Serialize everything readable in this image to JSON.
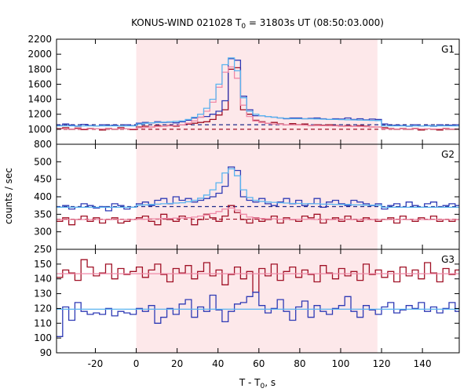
{
  "chart_data": {
    "type": "line",
    "title_main": "KONUS-WIND 021028 T",
    "title_sub": "0",
    "title_rest": " = 31803s UT (08:50:03.000)",
    "xlabel_main": "T - T",
    "xlabel_sub": "0",
    "xlabel_rest": ", s",
    "ylabel": "counts / sec",
    "xlim": [
      -39,
      158
    ],
    "xticks": [
      -20,
      0,
      20,
      40,
      60,
      80,
      100,
      120,
      140
    ],
    "shaded_interval": [
      0,
      118
    ],
    "colors": {
      "shade": "#fde8ea",
      "red_series": "#a01025",
      "blue_series": "#2e3ab5",
      "light_blue_model": "#5ab4f0",
      "pink_model": "#f08aa8",
      "navy_background": "#1f2a8a",
      "crimson_background": "#a01025",
      "grid": "#000000"
    },
    "step_x": [
      -39,
      -36,
      -33,
      -30,
      -27,
      -24,
      -21,
      -18,
      -15,
      -12,
      -9,
      -6,
      -3,
      0,
      3,
      6,
      9,
      12,
      15,
      18,
      21,
      24,
      27,
      30,
      33,
      36,
      39,
      42,
      45,
      48,
      51,
      54,
      57,
      60,
      63,
      66,
      69,
      72,
      75,
      78,
      81,
      84,
      87,
      90,
      93,
      96,
      99,
      102,
      105,
      108,
      111,
      114,
      117,
      120,
      123,
      126,
      129,
      132,
      135,
      138,
      141,
      144,
      147,
      150,
      153,
      156
    ],
    "panels": [
      {
        "label": "G1",
        "ylim": [
          800,
          2200
        ],
        "yticks": [
          800,
          1000,
          1200,
          1400,
          1600,
          1800,
          2000,
          2200
        ],
        "blue_series": [
          1050,
          1070,
          1055,
          1040,
          1065,
          1050,
          1045,
          1060,
          1050,
          1055,
          1045,
          1060,
          1050,
          1080,
          1090,
          1085,
          1100,
          1090,
          1095,
          1085,
          1100,
          1120,
          1150,
          1160,
          1170,
          1200,
          1240,
          1380,
          1940,
          1920,
          1440,
          1260,
          1180,
          1180,
          1170,
          1160,
          1150,
          1140,
          1150,
          1150,
          1140,
          1145,
          1150,
          1140,
          1130,
          1140,
          1135,
          1150,
          1130,
          1140,
          1125,
          1135,
          1130,
          1070,
          1050,
          1055,
          1050,
          1040,
          1060,
          1045,
          1050,
          1040,
          1060,
          1050,
          1055,
          1060
        ],
        "red_series": [
          1010,
          1020,
          1000,
          1015,
          995,
          1010,
          1005,
          990,
          1010,
          1000,
          1020,
          1005,
          995,
          1030,
          1040,
          1030,
          1050,
          1040,
          1050,
          1040,
          1060,
          1070,
          1080,
          1090,
          1100,
          1130,
          1190,
          1260,
          1800,
          1820,
          1260,
          1200,
          1120,
          1100,
          1080,
          1090,
          1070,
          1060,
          1075,
          1060,
          1070,
          1050,
          1060,
          1055,
          1060,
          1050,
          1040,
          1050,
          1040,
          1050,
          1040,
          1030,
          1030,
          1020,
          1010,
          1000,
          1010,
          1000,
          1010,
          990,
          1005,
          1000,
          990,
          1010,
          1000,
          1000
        ],
        "light_blue_model": [
          1045,
          1045,
          1045,
          1045,
          1045,
          1045,
          1045,
          1045,
          1045,
          1045,
          1045,
          1045,
          1045,
          1070,
          1080,
          1085,
          1090,
          1095,
          1100,
          1105,
          1110,
          1130,
          1160,
          1200,
          1280,
          1400,
          1600,
          1860,
          1950,
          1780,
          1420,
          1240,
          1200,
          1180,
          1170,
          1160,
          1150,
          1145,
          1140,
          1140,
          1140,
          1138,
          1136,
          1134,
          1132,
          1130,
          1128,
          1126,
          1124,
          1122,
          1120,
          1118,
          1116,
          1045,
          1045,
          1045,
          1045,
          1045,
          1045,
          1045,
          1045,
          1045,
          1045,
          1045,
          1045,
          1045
        ],
        "pink_model": [
          1005,
          1005,
          1005,
          1005,
          1005,
          1005,
          1005,
          1005,
          1005,
          1005,
          1005,
          1005,
          1005,
          1020,
          1025,
          1030,
          1035,
          1040,
          1045,
          1050,
          1060,
          1080,
          1110,
          1160,
          1240,
          1360,
          1560,
          1760,
          1830,
          1680,
          1320,
          1170,
          1110,
          1090,
          1080,
          1070,
          1065,
          1060,
          1058,
          1056,
          1054,
          1052,
          1050,
          1048,
          1046,
          1044,
          1042,
          1040,
          1038,
          1036,
          1034,
          1032,
          1030,
          1005,
          1005,
          1005,
          1005,
          1005,
          1005,
          1005,
          1005,
          1005,
          1005,
          1005,
          1005,
          1005
        ],
        "background_blue": 1060,
        "background_red": 1000
      },
      {
        "label": "G2",
        "ylim": [
          250,
          550
        ],
        "yticks": [
          250,
          300,
          350,
          400,
          450,
          500
        ],
        "blue_series": [
          370,
          375,
          365,
          370,
          380,
          375,
          368,
          372,
          360,
          380,
          375,
          365,
          370,
          380,
          385,
          375,
          390,
          395,
          380,
          400,
          390,
          395,
          385,
          390,
          395,
          400,
          410,
          430,
          485,
          475,
          400,
          390,
          385,
          395,
          380,
          375,
          385,
          395,
          380,
          390,
          375,
          380,
          395,
          370,
          385,
          390,
          380,
          375,
          390,
          385,
          380,
          375,
          380,
          365,
          375,
          380,
          370,
          385,
          375,
          370,
          380,
          385,
          370,
          375,
          380,
          375
        ],
        "red_series": [
          330,
          340,
          320,
          335,
          345,
          330,
          340,
          325,
          335,
          340,
          325,
          330,
          335,
          340,
          345,
          330,
          320,
          350,
          335,
          330,
          345,
          340,
          320,
          335,
          350,
          340,
          330,
          345,
          375,
          355,
          335,
          325,
          340,
          330,
          335,
          345,
          325,
          340,
          335,
          330,
          345,
          340,
          350,
          325,
          335,
          340,
          330,
          345,
          335,
          330,
          340,
          335,
          330,
          335,
          340,
          325,
          345,
          335,
          330,
          340,
          335,
          345,
          330,
          335,
          330,
          335
        ],
        "light_blue_model": [
          370,
          370,
          370,
          370,
          370,
          370,
          370,
          370,
          370,
          370,
          370,
          370,
          370,
          376,
          377,
          378,
          379,
          380,
          381,
          382,
          383,
          386,
          390,
          396,
          405,
          420,
          440,
          468,
          480,
          460,
          420,
          398,
          390,
          387,
          385,
          384,
          383,
          382,
          381,
          381,
          380,
          380,
          380,
          379,
          379,
          378,
          378,
          378,
          377,
          377,
          376,
          376,
          376,
          370,
          370,
          370,
          370,
          370,
          370,
          370,
          370,
          370,
          370,
          370,
          370,
          370
        ],
        "pink_model": [
          335,
          335,
          335,
          335,
          335,
          335,
          335,
          335,
          335,
          335,
          335,
          335,
          335,
          336,
          336,
          337,
          337,
          338,
          338,
          339,
          339,
          340,
          342,
          345,
          348,
          352,
          358,
          365,
          368,
          362,
          350,
          342,
          339,
          338,
          337,
          337,
          336,
          336,
          336,
          336,
          336,
          336,
          335,
          335,
          335,
          335,
          335,
          335,
          335,
          335,
          335,
          335,
          335,
          335,
          335,
          335,
          335,
          335,
          335,
          335,
          335,
          335,
          335,
          335,
          335,
          335
        ],
        "background_blue": 372,
        "background_red": 336
      },
      {
        "label": "G3",
        "ylim": [
          90,
          160
        ],
        "yticks": [
          90,
          100,
          110,
          120,
          130,
          140,
          150
        ],
        "blue_series": [
          101,
          121,
          112,
          124,
          118,
          116,
          117,
          116,
          120,
          115,
          118,
          117,
          116,
          120,
          118,
          122,
          110,
          114,
          120,
          116,
          123,
          126,
          114,
          121,
          118,
          129,
          119,
          111,
          118,
          123,
          124,
          128,
          131,
          122,
          117,
          120,
          126,
          118,
          112,
          121,
          125,
          114,
          122,
          118,
          116,
          120,
          122,
          128,
          118,
          114,
          122,
          119,
          116,
          121,
          124,
          117,
          119,
          122,
          120,
          124,
          118,
          121,
          117,
          120,
          124,
          118
        ],
        "red_series": [
          141,
          146,
          144,
          139,
          153,
          148,
          142,
          144,
          150,
          140,
          147,
          143,
          145,
          148,
          141,
          146,
          150,
          143,
          138,
          147,
          144,
          149,
          140,
          145,
          151,
          142,
          146,
          136,
          143,
          148,
          140,
          145,
          131,
          147,
          142,
          150,
          139,
          145,
          148,
          141,
          146,
          143,
          138,
          149,
          144,
          140,
          147,
          142,
          145,
          139,
          150,
          143,
          146,
          141,
          145,
          138,
          148,
          142,
          146,
          140,
          151,
          144,
          138,
          147,
          143,
          146
        ],
        "light_blue_model": [
          119.5,
          119.5,
          119.5,
          119.5,
          119.5,
          119.5,
          119.5,
          119.5,
          119.5,
          119.5,
          119.5,
          119.5,
          119.5,
          119.5,
          119.5,
          119.5,
          119.5,
          119.5,
          119.5,
          119.5,
          119.5,
          119.5,
          119.5,
          119.5,
          119.5,
          119.5,
          119.5,
          119.5,
          119.5,
          119.5,
          119.5,
          119.5,
          119.5,
          119.5,
          119.5,
          119.5,
          119.5,
          119.5,
          119.5,
          119.5,
          119.5,
          119.5,
          119.5,
          119.5,
          119.5,
          119.5,
          119.5,
          119.5,
          119.5,
          119.5,
          119.5,
          119.5,
          119.5,
          119.5,
          119.5,
          119.5,
          119.5,
          119.5,
          119.5,
          119.5,
          119.5,
          119.5,
          119.5,
          119.5,
          119.5,
          119.5
        ],
        "pink_model": [
          143.5,
          143.5,
          143.5,
          143.5,
          143.5,
          143.5,
          143.5,
          143.5,
          143.5,
          143.5,
          143.5,
          143.5,
          143.5,
          143.5,
          143.5,
          143.5,
          143.5,
          143.5,
          143.5,
          143.5,
          143.5,
          143.5,
          143.5,
          143.5,
          143.5,
          143.5,
          143.5,
          143.5,
          143.5,
          143.5,
          143.5,
          143.5,
          143.5,
          143.5,
          143.5,
          143.5,
          143.5,
          143.5,
          143.5,
          143.5,
          143.5,
          143.5,
          143.5,
          143.5,
          143.5,
          143.5,
          143.5,
          143.5,
          143.5,
          143.5,
          143.5,
          143.5,
          143.5,
          143.5,
          143.5,
          143.5,
          143.5,
          143.5,
          143.5,
          143.5,
          143.5,
          143.5,
          143.5,
          143.5,
          143.5,
          143.5
        ],
        "background_blue": null,
        "background_red": null
      }
    ],
    "grid": false,
    "legend": "none"
  }
}
